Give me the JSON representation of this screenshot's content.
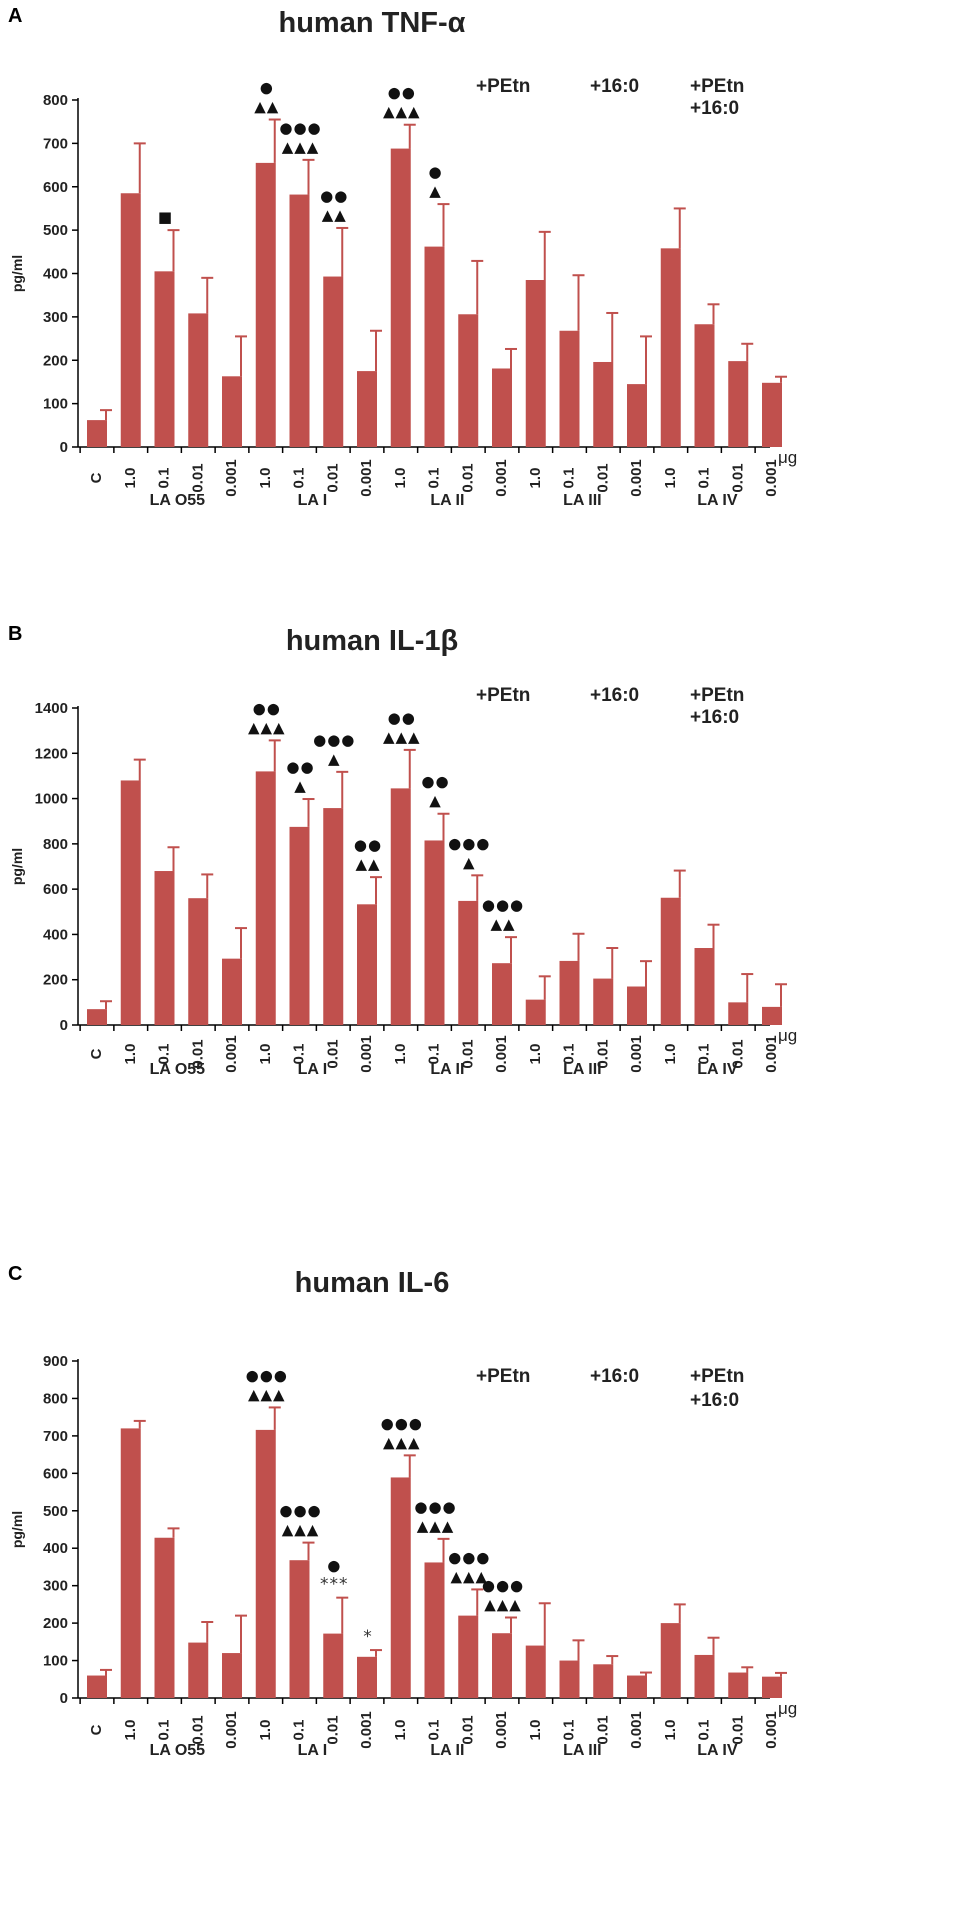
{
  "panels_meta": {
    "unit_label": "μg"
  },
  "chart_data": [
    {
      "panel": "A",
      "type": "bar",
      "title": "human TNF-α",
      "ylabel": "pg/ml",
      "ylim": [
        0,
        800
      ],
      "yticks": [
        0,
        100,
        200,
        300,
        400,
        500,
        600,
        700,
        800
      ],
      "categories": [
        "C",
        "1.0",
        "0.1",
        "0.01",
        "0.001",
        "1.0",
        "0.1",
        "0.01",
        "0.001",
        "1.0",
        "0.1",
        "0.01",
        "0.001",
        "1.0",
        "0.1",
        "0.01",
        "0.001",
        "1.0",
        "0.1",
        "0.01",
        "0.001"
      ],
      "values": [
        62,
        585,
        405,
        308,
        163,
        655,
        582,
        393,
        175,
        688,
        462,
        306,
        181,
        385,
        268,
        196,
        145,
        458,
        283,
        198,
        148
      ],
      "errors": [
        23,
        115,
        95,
        82,
        92,
        100,
        80,
        112,
        93,
        55,
        98,
        123,
        45,
        111,
        128,
        113,
        110,
        92,
        46,
        40,
        14
      ],
      "groups": [
        {
          "label": "LA O55",
          "start": 1,
          "end": 4
        },
        {
          "label": "LA I",
          "start": 5,
          "end": 8
        },
        {
          "label": "LA II",
          "start": 9,
          "end": 12
        },
        {
          "label": "LA III",
          "start": 13,
          "end": 16
        },
        {
          "label": "LA IV",
          "start": 17,
          "end": 20
        }
      ],
      "legend": [
        {
          "text": "+PEtn",
          "col": 0,
          "row": 0
        },
        {
          "text": "+16:0",
          "col": 1,
          "row": 0
        },
        {
          "text": "+PEtn",
          "col": 2,
          "row": 0
        },
        {
          "text": "+16:0",
          "col": 2,
          "row": 1
        }
      ],
      "annotations": [
        {
          "index": 2,
          "lines": [
            "■"
          ]
        },
        {
          "index": 5,
          "lines": [
            "●",
            "▲▲"
          ]
        },
        {
          "index": 6,
          "lines": [
            "●●●",
            "▲▲▲"
          ]
        },
        {
          "index": 7,
          "lines": [
            "●●",
            "▲▲"
          ]
        },
        {
          "index": 9,
          "lines": [
            "●●",
            "▲▲▲"
          ]
        },
        {
          "index": 10,
          "lines": [
            "●",
            "▲"
          ]
        }
      ]
    },
    {
      "panel": "B",
      "type": "bar",
      "title": "human IL-1β",
      "ylabel": "pg/ml",
      "ylim": [
        0,
        1400
      ],
      "yticks": [
        0,
        200,
        400,
        600,
        800,
        1000,
        1200,
        1400
      ],
      "categories": [
        "C",
        "1.0",
        "0.1",
        "0.01",
        "0.001",
        "1.0",
        "0.1",
        "0.01",
        "0.001",
        "1.0",
        "0.1",
        "0.01",
        "0.001",
        "1.0",
        "0.1",
        "0.01",
        "0.001",
        "1.0",
        "0.1",
        "0.01",
        "0.001"
      ],
      "values": [
        70,
        1080,
        680,
        560,
        293,
        1120,
        875,
        958,
        533,
        1045,
        815,
        548,
        273,
        112,
        283,
        205,
        170,
        562,
        340,
        100,
        80
      ],
      "errors": [
        35,
        92,
        105,
        105,
        135,
        137,
        123,
        160,
        120,
        170,
        118,
        113,
        115,
        103,
        120,
        135,
        112,
        120,
        103,
        125,
        100
      ],
      "groups": [
        {
          "label": "LA O55",
          "start": 1,
          "end": 4
        },
        {
          "label": "LA I",
          "start": 5,
          "end": 8
        },
        {
          "label": "LA II",
          "start": 9,
          "end": 12
        },
        {
          "label": "LA III",
          "start": 13,
          "end": 16
        },
        {
          "label": "LA IV",
          "start": 17,
          "end": 20
        }
      ],
      "legend": [
        {
          "text": "+PEtn",
          "col": 0,
          "row": 0
        },
        {
          "text": "+16:0",
          "col": 1,
          "row": 0
        },
        {
          "text": "+PEtn",
          "col": 2,
          "row": 0
        },
        {
          "text": "+16:0",
          "col": 2,
          "row": 1
        }
      ],
      "annotations": [
        {
          "index": 5,
          "lines": [
            "●●",
            "▲▲▲"
          ]
        },
        {
          "index": 6,
          "lines": [
            "●●",
            "▲"
          ]
        },
        {
          "index": 7,
          "lines": [
            "●●●",
            "▲"
          ]
        },
        {
          "index": 8,
          "lines": [
            "●●",
            "▲▲"
          ]
        },
        {
          "index": 9,
          "lines": [
            "●●",
            "▲▲▲"
          ]
        },
        {
          "index": 10,
          "lines": [
            "●●",
            "▲"
          ]
        },
        {
          "index": 11,
          "lines": [
            "●●●",
            "▲"
          ]
        },
        {
          "index": 12,
          "lines": [
            "●●●",
            "▲▲"
          ]
        }
      ]
    },
    {
      "panel": "C",
      "type": "bar",
      "title": "human IL-6",
      "ylabel": "pg/ml",
      "ylim": [
        0,
        900
      ],
      "yticks": [
        0,
        100,
        200,
        300,
        400,
        500,
        600,
        700,
        800,
        900
      ],
      "categories": [
        "C",
        "1.0",
        "0.1",
        "0.01",
        "0.001",
        "1.0",
        "0.1",
        "0.01",
        "0.001",
        "1.0",
        "0.1",
        "0.01",
        "0.001",
        "1.0",
        "0.1",
        "0.01",
        "0.001",
        "1.0",
        "0.1",
        "0.01",
        "0.001"
      ],
      "values": [
        60,
        720,
        428,
        148,
        120,
        716,
        368,
        172,
        110,
        589,
        362,
        220,
        173,
        140,
        100,
        90,
        60,
        200,
        115,
        68,
        57
      ],
      "errors": [
        15,
        20,
        25,
        55,
        100,
        60,
        47,
        96,
        18,
        59,
        63,
        70,
        42,
        113,
        54,
        22,
        8,
        50,
        46,
        14,
        10
      ],
      "groups": [
        {
          "label": "LA O55",
          "start": 1,
          "end": 4
        },
        {
          "label": "LA I",
          "start": 5,
          "end": 8
        },
        {
          "label": "LA II",
          "start": 9,
          "end": 12
        },
        {
          "label": "LA III",
          "start": 13,
          "end": 16
        },
        {
          "label": "LA IV",
          "start": 17,
          "end": 20
        }
      ],
      "legend": [
        {
          "text": "+PEtn",
          "col": 0,
          "row": 0
        },
        {
          "text": "+16:0",
          "col": 1,
          "row": 0
        },
        {
          "text": "+PEtn",
          "col": 2,
          "row": 0
        },
        {
          "text": "+16:0",
          "col": 2,
          "row": 1
        }
      ],
      "annotations": [
        {
          "index": 5,
          "lines": [
            "●●●",
            "▲▲▲"
          ]
        },
        {
          "index": 6,
          "lines": [
            "●●●",
            "▲▲▲"
          ]
        },
        {
          "index": 7,
          "lines": [
            "●",
            "***"
          ]
        },
        {
          "index": 8,
          "lines": [
            "*"
          ]
        },
        {
          "index": 9,
          "lines": [
            "●●●",
            "▲▲▲"
          ]
        },
        {
          "index": 10,
          "lines": [
            "●●●",
            "▲▲▲"
          ]
        },
        {
          "index": 11,
          "lines": [
            "●●●",
            "▲▲▲"
          ]
        },
        {
          "index": 12,
          "lines": [
            "●●●",
            "▲▲▲"
          ]
        }
      ]
    }
  ]
}
